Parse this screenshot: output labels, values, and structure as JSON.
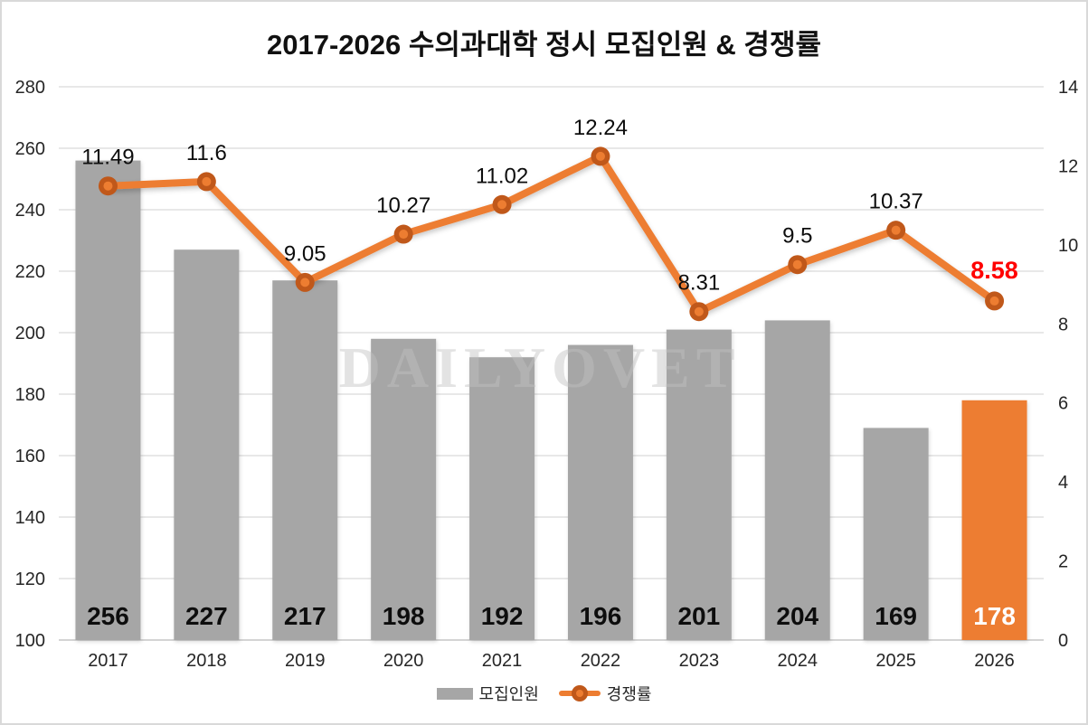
{
  "page": {
    "background_color": "#ffffff",
    "border_color": "#d9d9d9"
  },
  "chart_data": {
    "type": "bar+line",
    "title": "2017-2026 수의과대학 정시 모집인원 & 경쟁률",
    "watermark": "DAILYOVET",
    "categories": [
      "2017",
      "2018",
      "2019",
      "2020",
      "2021",
      "2022",
      "2023",
      "2024",
      "2025",
      "2026"
    ],
    "series": [
      {
        "name": "모집인원",
        "type": "bar",
        "axis": "left",
        "values": [
          256,
          227,
          217,
          198,
          192,
          196,
          201,
          204,
          169,
          178
        ],
        "value_labels": [
          "256",
          "227",
          "217",
          "198",
          "192",
          "196",
          "201",
          "204",
          "169",
          "178"
        ],
        "bar_color": "#a6a6a6",
        "highlight_index": 9,
        "highlight_color": "#ed7d31",
        "label_color": "#0d0d0d",
        "highlight_label_color": "#ffffff"
      },
      {
        "name": "경쟁률",
        "type": "line",
        "axis": "right",
        "values": [
          11.49,
          11.6,
          9.05,
          10.27,
          11.02,
          12.24,
          8.31,
          9.5,
          10.37,
          8.58
        ],
        "value_labels": [
          "11.49",
          "11.6",
          "9.05",
          "10.27",
          "11.02",
          "12.24",
          "8.31",
          "9.5",
          "10.37",
          "8.58"
        ],
        "line_color": "#ed7d31",
        "marker_ring_color": "#c0581a",
        "marker_center_color": "#ed7d31",
        "label_color": "#0d0d0d",
        "highlight_index": 9,
        "highlight_label_color": "#ff0000"
      }
    ],
    "left_axis": {
      "min": 100,
      "max": 280,
      "step": 20,
      "ticks": [
        "100",
        "120",
        "140",
        "160",
        "180",
        "200",
        "220",
        "240",
        "260",
        "280"
      ]
    },
    "right_axis": {
      "min": 0,
      "max": 14,
      "step": 2,
      "ticks": [
        "0",
        "2",
        "4",
        "6",
        "8",
        "10",
        "12",
        "14"
      ]
    },
    "grid": true,
    "gridline_color": "#d9d9d9",
    "axis_line_color": "#c6c6c6",
    "axis_text_color": "#262626",
    "legend_position": "bottom"
  }
}
